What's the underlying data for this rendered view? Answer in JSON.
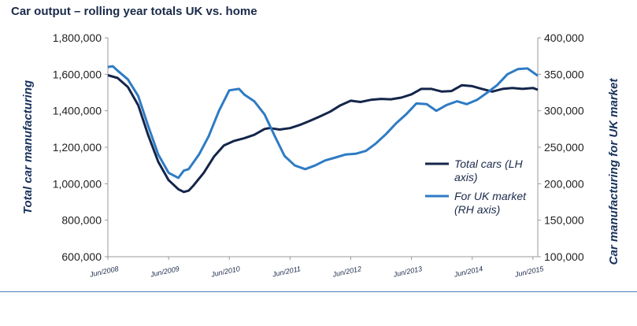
{
  "title": "Car output – rolling year totals UK vs. home",
  "chart_data": {
    "type": "line",
    "title": "Car output – rolling year totals UK vs. home",
    "ylabel": "Total car manufacturing",
    "y2label": "Car manufacturing for UK market",
    "ylim": [
      600000,
      1800000
    ],
    "y2lim": [
      100000,
      400000
    ],
    "yticks": [
      "600,000",
      "800,000",
      "1,000,000",
      "1,200,000",
      "1,400,000",
      "1,600,000",
      "1,800,000"
    ],
    "y2ticks": [
      "100,000",
      "150,000",
      "200,000",
      "250,000",
      "300,000",
      "350,000",
      "400,000"
    ],
    "xticks": [
      "Jun/2008",
      "Jun/2009",
      "Jun/2010",
      "Jun/2011",
      "Jun/2012",
      "Jun/2013",
      "Jun/2014",
      "Jun/2015"
    ],
    "xlim": [
      2008.42,
      2015.5
    ],
    "legend_position": "right",
    "grid": false,
    "series": [
      {
        "name": "Total cars (LH axis)",
        "axis": "left",
        "color": "#14254a",
        "points": [
          [
            2008.42,
            1595000
          ],
          [
            2008.58,
            1580000
          ],
          [
            2008.75,
            1530000
          ],
          [
            2008.92,
            1430000
          ],
          [
            2009.08,
            1270000
          ],
          [
            2009.25,
            1120000
          ],
          [
            2009.42,
            1020000
          ],
          [
            2009.58,
            970000
          ],
          [
            2009.67,
            955000
          ],
          [
            2009.75,
            962000
          ],
          [
            2009.83,
            990000
          ],
          [
            2010.0,
            1060000
          ],
          [
            2010.17,
            1150000
          ],
          [
            2010.33,
            1210000
          ],
          [
            2010.5,
            1235000
          ],
          [
            2010.67,
            1250000
          ],
          [
            2010.83,
            1268000
          ],
          [
            2011.0,
            1300000
          ],
          [
            2011.08,
            1305000
          ],
          [
            2011.25,
            1297000
          ],
          [
            2011.42,
            1305000
          ],
          [
            2011.58,
            1322000
          ],
          [
            2011.75,
            1345000
          ],
          [
            2011.92,
            1370000
          ],
          [
            2012.08,
            1395000
          ],
          [
            2012.25,
            1430000
          ],
          [
            2012.42,
            1455000
          ],
          [
            2012.58,
            1448000
          ],
          [
            2012.75,
            1460000
          ],
          [
            2012.92,
            1465000
          ],
          [
            2013.08,
            1463000
          ],
          [
            2013.25,
            1472000
          ],
          [
            2013.42,
            1490000
          ],
          [
            2013.58,
            1520000
          ],
          [
            2013.75,
            1520000
          ],
          [
            2013.92,
            1505000
          ],
          [
            2014.08,
            1508000
          ],
          [
            2014.25,
            1540000
          ],
          [
            2014.42,
            1535000
          ],
          [
            2014.58,
            1520000
          ],
          [
            2014.75,
            1505000
          ],
          [
            2014.92,
            1520000
          ],
          [
            2015.08,
            1525000
          ],
          [
            2015.25,
            1520000
          ],
          [
            2015.42,
            1525000
          ],
          [
            2015.5,
            1515000
          ]
        ]
      },
      {
        "name": "For UK market (RH axis)",
        "axis": "right",
        "color": "#2e7bc4",
        "points": [
          [
            2008.42,
            360000
          ],
          [
            2008.5,
            361000
          ],
          [
            2008.58,
            355000
          ],
          [
            2008.75,
            343000
          ],
          [
            2008.92,
            320000
          ],
          [
            2009.08,
            280000
          ],
          [
            2009.25,
            240000
          ],
          [
            2009.42,
            215000
          ],
          [
            2009.58,
            208000
          ],
          [
            2009.67,
            218000
          ],
          [
            2009.75,
            220000
          ],
          [
            2009.92,
            240000
          ],
          [
            2010.08,
            265000
          ],
          [
            2010.25,
            300000
          ],
          [
            2010.42,
            328000
          ],
          [
            2010.58,
            330000
          ],
          [
            2010.67,
            322000
          ],
          [
            2010.83,
            313000
          ],
          [
            2011.0,
            295000
          ],
          [
            2011.17,
            265000
          ],
          [
            2011.33,
            238000
          ],
          [
            2011.5,
            225000
          ],
          [
            2011.67,
            220000
          ],
          [
            2011.83,
            225000
          ],
          [
            2012.0,
            232000
          ],
          [
            2012.17,
            236000
          ],
          [
            2012.33,
            240000
          ],
          [
            2012.5,
            241000
          ],
          [
            2012.67,
            245000
          ],
          [
            2012.83,
            255000
          ],
          [
            2013.0,
            268000
          ],
          [
            2013.17,
            283000
          ],
          [
            2013.33,
            295000
          ],
          [
            2013.5,
            310000
          ],
          [
            2013.67,
            309000
          ],
          [
            2013.83,
            300000
          ],
          [
            2014.0,
            308000
          ],
          [
            2014.17,
            313000
          ],
          [
            2014.33,
            309000
          ],
          [
            2014.5,
            315000
          ],
          [
            2014.67,
            325000
          ],
          [
            2014.83,
            335000
          ],
          [
            2015.0,
            350000
          ],
          [
            2015.17,
            357000
          ],
          [
            2015.33,
            358000
          ],
          [
            2015.5,
            348000
          ]
        ]
      }
    ]
  }
}
